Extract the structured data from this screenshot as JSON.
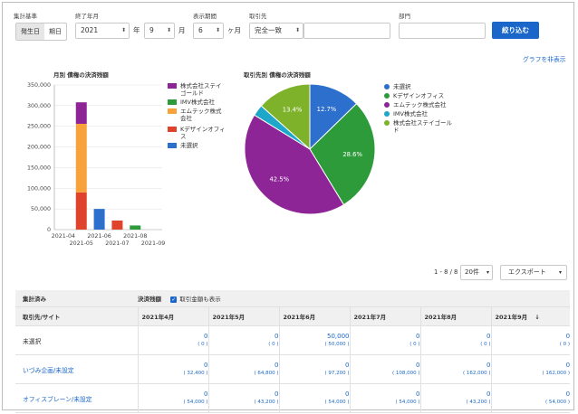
{
  "filters": {
    "aggregation_label": "集計基準",
    "agg_options": [
      "発生日",
      "期日"
    ],
    "end_label": "終了年月",
    "year_value": "2021",
    "year_unit": "年",
    "month_value": "9",
    "month_unit": "月",
    "period_label": "表示期間",
    "period_value": "6",
    "period_unit": "ヶ月",
    "partner_label": "取引先",
    "match_value": "完全一致",
    "dept_label": "部門",
    "apply_button": "絞り込む"
  },
  "hide_graph_link": "グラフを非表示",
  "bar_chart_title": "月別 債権の決済残額",
  "pie_chart_title": "取引先別 債権の決済残額",
  "chart_data": [
    {
      "type": "bar",
      "stacked": true,
      "title": "月別 債権の決済残額",
      "categories": [
        "2021-04",
        "2021-05",
        "2021-06",
        "2021-07",
        "2021-08",
        "2021-09"
      ],
      "yticks": [
        "350,000",
        "300,000",
        "250,000",
        "200,000",
        "150,000",
        "100,000",
        "50,000",
        "0"
      ],
      "ylim": [
        0,
        350000
      ],
      "series": [
        {
          "name": "未選択",
          "color": "#2c6fcc",
          "values": [
            0,
            0,
            50000,
            0,
            0,
            0
          ]
        },
        {
          "name": "Kデザインオフィス",
          "color": "#e0432b",
          "values": [
            0,
            90000,
            0,
            22000,
            0,
            0
          ]
        },
        {
          "name": "エムテック株式会社",
          "color": "#f7a23a",
          "values": [
            0,
            166000,
            0,
            0,
            0,
            0
          ]
        },
        {
          "name": "IMV株式会社",
          "color": "#2e9b3a",
          "values": [
            0,
            0,
            0,
            0,
            10000,
            0
          ]
        },
        {
          "name": "株式会社ステイゴールド",
          "color": "#8e2596",
          "values": [
            0,
            52000,
            0,
            0,
            0,
            0
          ]
        }
      ],
      "legend": [
        {
          "label": "株式会社ステイゴールド",
          "color": "#8e2596"
        },
        {
          "label": "IMV株式会社",
          "color": "#2e9b3a"
        },
        {
          "label": "エムテック株式会社",
          "color": "#f7a23a"
        },
        {
          "label": "Kデザインオフィス",
          "color": "#e0432b"
        },
        {
          "label": "未選択",
          "color": "#2c6fcc"
        }
      ]
    },
    {
      "type": "pie",
      "title": "取引先別 債権の決済残額",
      "slices": [
        {
          "name": "未選択",
          "value": 12.7,
          "label": "12.7%",
          "color": "#2c6fcc"
        },
        {
          "name": "Kデザインオフィス",
          "value": 28.6,
          "label": "28.6%",
          "color": "#2e9b3a"
        },
        {
          "name": "エムテック株式会社",
          "value": 42.5,
          "label": "42.5%",
          "color": "#8e2596"
        },
        {
          "name": "IMV株式会社",
          "value": 2.8,
          "label": "",
          "color": "#1ea7c8"
        },
        {
          "name": "株式会社ステイゴールド",
          "value": 13.4,
          "label": "13.4%",
          "color": "#7fb22b"
        }
      ],
      "legend": [
        {
          "label": "未選択",
          "color": "#2c6fcc"
        },
        {
          "label": "Kデザインオフィス",
          "color": "#2e9b3a"
        },
        {
          "label": "エムテック株式会社",
          "color": "#8e2596"
        },
        {
          "label": "IMV株式会社",
          "color": "#1ea7c8"
        },
        {
          "label": "株式会社ステイゴールド",
          "color": "#7fb22b"
        }
      ]
    }
  ],
  "pagination": {
    "range": "1 - 8 / 8",
    "per_page": "20件",
    "export_label": "エクスポート"
  },
  "table": {
    "section_label": "集計済み",
    "settlement_label": "決済残額",
    "show_amount_label": "取引金額も表示",
    "first_col_header": "取引先/サイト",
    "months": [
      "2021年4月",
      "2021年5月",
      "2021年6月",
      "2021年7月",
      "2021年8月",
      "2021年9月"
    ],
    "rows": [
      {
        "name": "未選択",
        "link": false,
        "values": [
          "0",
          "0",
          "50,000",
          "0",
          "0",
          "0"
        ],
        "subs": [
          "( 0 )",
          "( 0 )",
          "( 50,000 )",
          "( 0 )",
          "( 0 )",
          "( 0 )"
        ]
      },
      {
        "name": "いづみ企画/未設定",
        "link": true,
        "values": [
          "0",
          "0",
          "0",
          "0",
          "0",
          "0"
        ],
        "subs": [
          "( 32,400 )",
          "( 64,800 )",
          "( 97,200 )",
          "( 108,000 )",
          "( 162,000 )",
          "( 162,000 )"
        ]
      },
      {
        "name": "オフィスブレーン/未設定",
        "link": true,
        "values": [
          "0",
          "0",
          "0",
          "0",
          "0",
          "0"
        ],
        "subs": [
          "( 54,000 )",
          "( 43,200 )",
          "( 54,000 )",
          "( 54,000 )",
          "( 43,200 )",
          "( 54,000 )"
        ]
      }
    ]
  }
}
